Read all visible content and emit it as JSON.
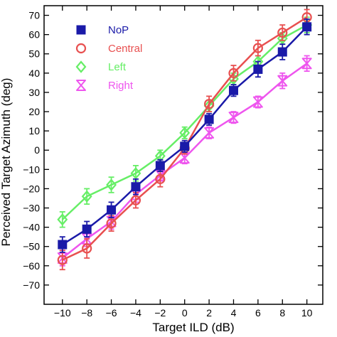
{
  "chart_data": {
    "type": "line",
    "title": "",
    "xlabel": "Target ILD (dB)",
    "ylabel": "Perceived Target Azimuth (deg)",
    "xlim": [
      -11.5,
      11.3
    ],
    "ylim": [
      -80,
      75
    ],
    "x_ticks": [
      -10,
      -8,
      -6,
      -4,
      -2,
      0,
      2,
      4,
      6,
      8,
      10
    ],
    "x_tick_labels": [
      "−10",
      "−8",
      "−6",
      "−4",
      "−2",
      "0",
      "2",
      "4",
      "6",
      "8",
      "10"
    ],
    "y_ticks": [
      70,
      60,
      50,
      40,
      30,
      20,
      10,
      0,
      -10,
      -20,
      -30,
      -40,
      -50,
      -60,
      -70
    ],
    "y_tick_labels": [
      "70",
      "60",
      "50",
      "40",
      "30",
      "20",
      "10",
      "0",
      "−10",
      "−20",
      "−30",
      "−40",
      "−50",
      "−60",
      "−70"
    ],
    "grid": false,
    "legend_position": "top-left",
    "x": [
      -10,
      -8,
      -6,
      -4,
      -2,
      0,
      2,
      4,
      6,
      8,
      10
    ],
    "series": [
      {
        "name": "NoP",
        "color": "#1a1aa8",
        "marker": "square-filled",
        "values": [
          -49,
          -41,
          -31,
          -19,
          -8,
          2,
          16,
          31,
          42,
          51,
          64
        ],
        "errors": [
          4,
          4,
          4,
          4,
          3,
          3,
          3,
          3,
          4,
          4,
          4
        ]
      },
      {
        "name": "Central",
        "color": "#e85050",
        "marker": "circle-open",
        "values": [
          -57,
          -51,
          -38,
          -26,
          -15,
          1,
          24,
          40,
          53,
          61,
          69
        ],
        "errors": [
          5,
          5,
          4,
          4,
          4,
          3,
          4,
          4,
          4,
          4,
          4
        ]
      },
      {
        "name": "Left",
        "color": "#66ee66",
        "marker": "diamond-open",
        "values": [
          -36,
          -24,
          -18,
          -12,
          -3,
          9,
          23,
          37,
          46,
          58,
          65
        ],
        "errors": [
          4,
          4,
          4,
          4,
          3,
          3,
          3,
          3,
          3,
          3,
          4
        ]
      },
      {
        "name": "Right",
        "color": "#ee55ee",
        "marker": "hourglass",
        "values": [
          -56,
          -46,
          -37,
          -23,
          -13,
          -4,
          9,
          17,
          25,
          36,
          45
        ],
        "errors": [
          4,
          4,
          4,
          4,
          3,
          3,
          3,
          3,
          3,
          4,
          4
        ]
      }
    ]
  }
}
